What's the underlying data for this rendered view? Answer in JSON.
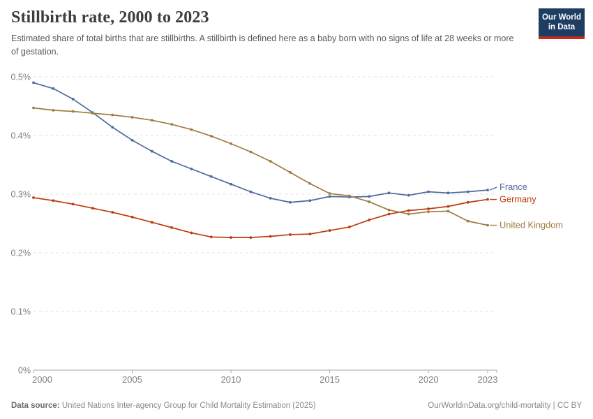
{
  "header": {
    "title": "Stillbirth rate, 2000 to 2023",
    "subtitle": "Estimated share of total births that are stillbirths. A stillbirth is defined here as a baby born with no signs of life at 28 weeks or more of gestation.",
    "logo": {
      "line1": "Our World",
      "line2": "in Data"
    }
  },
  "footer": {
    "datasource_label": "Data source:",
    "datasource_text": " United Nations Inter-agency Group for Child Mortality Estimation (2025)",
    "link": "OurWorldinData.org/child-mortality | CC BY"
  },
  "colors": {
    "logo_navy": "#1d3d63",
    "logo_red": "#c5281c",
    "gridline": "#e3e3e3",
    "axis": "#a8a8a8",
    "tick_text": "#7f7f7f"
  },
  "chart_data": {
    "type": "line",
    "title": "Stillbirth rate, 2000 to 2023",
    "unit": "%",
    "xlabel": "",
    "ylabel": "",
    "xlim": [
      2000,
      2023
    ],
    "ylim": [
      0,
      0.5
    ],
    "grid": "dashed-horizontal",
    "legend": "line-end-labels",
    "x": [
      2000,
      2001,
      2002,
      2003,
      2004,
      2005,
      2006,
      2007,
      2008,
      2009,
      2010,
      2011,
      2012,
      2013,
      2014,
      2015,
      2016,
      2017,
      2018,
      2019,
      2020,
      2021,
      2022,
      2023
    ],
    "xticks": [
      {
        "year": 2000,
        "label": "2000"
      },
      {
        "year": 2005,
        "label": "2005"
      },
      {
        "year": 2010,
        "label": "2010"
      },
      {
        "year": 2015,
        "label": "2015"
      },
      {
        "year": 2020,
        "label": "2020"
      },
      {
        "year": 2023,
        "label": "2023"
      }
    ],
    "yticks": [
      {
        "value": 0,
        "label": "0%"
      },
      {
        "value": 0.1,
        "label": "0.1%"
      },
      {
        "value": 0.2,
        "label": "0.2%"
      },
      {
        "value": 0.3,
        "label": "0.3%"
      },
      {
        "value": 0.4,
        "label": "0.4%"
      },
      {
        "value": 0.5,
        "label": "0.5%"
      }
    ],
    "series": [
      {
        "name": "France",
        "color": "#4C6A9C",
        "values": [
          0.49,
          0.48,
          0.462,
          0.439,
          0.414,
          0.392,
          0.373,
          0.356,
          0.343,
          0.33,
          0.317,
          0.304,
          0.293,
          0.286,
          0.289,
          0.296,
          0.295,
          0.296,
          0.302,
          0.298,
          0.304,
          0.302,
          0.304,
          0.307
        ]
      },
      {
        "name": "Germany",
        "color": "#BE3B0E",
        "values": [
          0.294,
          0.289,
          0.283,
          0.276,
          0.269,
          0.261,
          0.252,
          0.243,
          0.234,
          0.227,
          0.226,
          0.226,
          0.228,
          0.231,
          0.232,
          0.238,
          0.244,
          0.256,
          0.266,
          0.272,
          0.275,
          0.279,
          0.286,
          0.291
        ]
      },
      {
        "name": "United Kingdom",
        "color": "#9E7B41",
        "values": [
          0.447,
          0.443,
          0.441,
          0.438,
          0.435,
          0.431,
          0.426,
          0.419,
          0.41,
          0.399,
          0.386,
          0.372,
          0.356,
          0.337,
          0.318,
          0.301,
          0.297,
          0.287,
          0.273,
          0.266,
          0.27,
          0.271,
          0.254,
          0.247
        ]
      }
    ]
  }
}
